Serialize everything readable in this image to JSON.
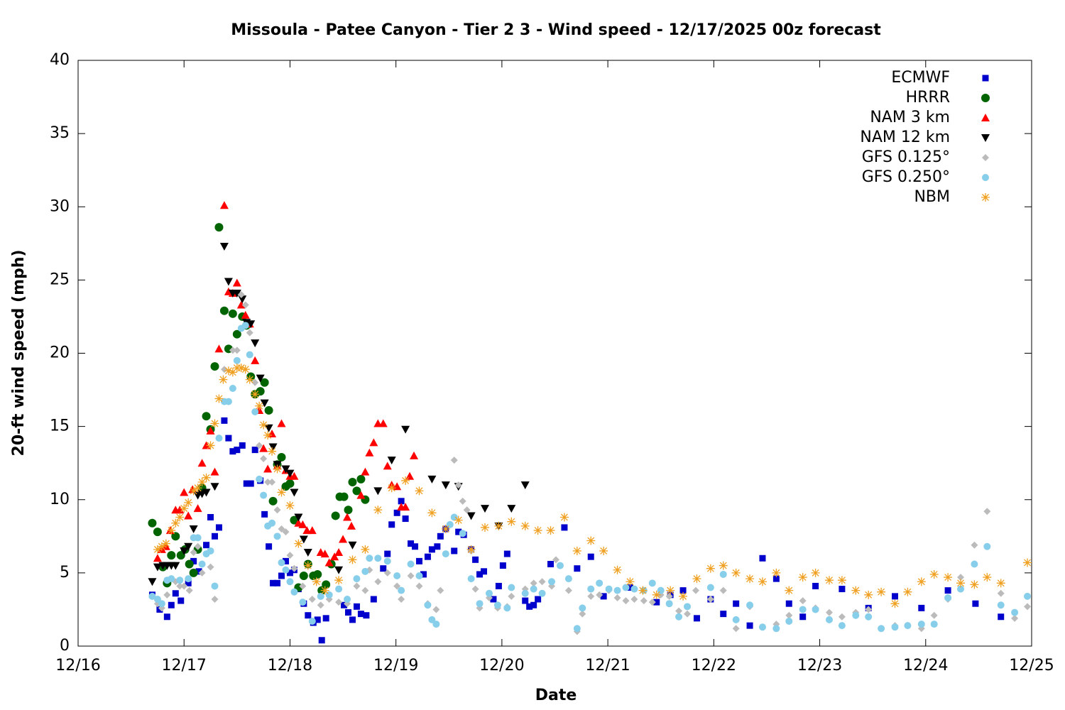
{
  "chart_data": {
    "type": "scatter",
    "title": "Missoula - Patee Canyon - Tier 2 3 - Wind speed - 12/17/2025 00z forecast",
    "x_label": "Date",
    "y_label": "20-ft wind speed (mph)",
    "xlim": [
      0,
      9
    ],
    "ylim": [
      0,
      40
    ],
    "xticks": [
      {
        "value": 0,
        "label": "12/16"
      },
      {
        "value": 1,
        "label": "12/17"
      },
      {
        "value": 2,
        "label": "12/18"
      },
      {
        "value": 3,
        "label": "12/19"
      },
      {
        "value": 4,
        "label": "12/20"
      },
      {
        "value": 5,
        "label": "12/21"
      },
      {
        "value": 6,
        "label": "12/22"
      },
      {
        "value": 7,
        "label": "12/23"
      },
      {
        "value": 8,
        "label": "12/24"
      },
      {
        "value": 9,
        "label": "12/25"
      }
    ],
    "yticks": [
      0,
      5,
      10,
      15,
      20,
      25,
      30,
      35,
      40
    ],
    "grid": false,
    "legend": "top-right",
    "series": [
      {
        "name": "ECMWF",
        "color": "#0000cc",
        "marker": "square",
        "x": [
          0.7,
          0.77,
          0.84,
          0.88,
          0.92,
          0.97,
          1.04,
          1.09,
          1.14,
          1.21,
          1.25,
          1.29,
          1.33,
          1.38,
          1.42,
          1.46,
          1.5,
          1.55,
          1.59,
          1.63,
          1.67,
          1.72,
          1.76,
          1.8,
          1.84,
          1.88,
          1.92,
          1.96,
          2.0,
          2.04,
          2.08,
          2.13,
          2.17,
          2.22,
          2.26,
          2.3,
          2.34,
          2.51,
          2.55,
          2.59,
          2.63,
          2.67,
          2.72,
          2.79,
          2.88,
          2.92,
          2.96,
          3.01,
          3.05,
          3.09,
          3.14,
          3.18,
          3.22,
          3.26,
          3.3,
          3.34,
          3.39,
          3.42,
          3.47,
          3.55,
          3.59,
          3.64,
          3.71,
          3.75,
          3.79,
          3.83,
          3.92,
          3.97,
          4.01,
          4.05,
          4.22,
          4.26,
          4.3,
          4.34,
          4.46,
          4.59,
          4.71,
          4.84,
          4.96,
          5.21,
          5.46,
          5.59,
          5.71,
          5.84,
          5.97,
          6.09,
          6.21,
          6.34,
          6.46,
          6.59,
          6.71,
          6.84,
          6.96,
          7.21,
          7.46,
          7.71,
          7.96,
          8.21,
          8.47,
          8.71
        ],
        "values": [
          3.5,
          2.5,
          2.0,
          2.8,
          3.6,
          3.1,
          4.3,
          5.8,
          5.1,
          6.9,
          8.8,
          7.5,
          8.1,
          15.4,
          14.2,
          13.3,
          13.4,
          13.7,
          11.1,
          11.1,
          13.4,
          11.3,
          9.0,
          6.8,
          4.3,
          4.3,
          4.8,
          5.8,
          5.0,
          5.2,
          3.9,
          2.9,
          2.1,
          1.6,
          1.8,
          0.4,
          1.9,
          2.8,
          2.3,
          1.8,
          2.7,
          2.2,
          2.1,
          3.2,
          5.3,
          6.3,
          8.3,
          9.1,
          9.9,
          8.7,
          7.0,
          6.8,
          5.8,
          4.9,
          6.1,
          6.6,
          6.8,
          7.5,
          8.0,
          6.5,
          7.8,
          7.6,
          6.6,
          5.9,
          4.9,
          5.1,
          3.2,
          4.1,
          5.5,
          6.3,
          3.1,
          2.7,
          2.8,
          3.2,
          5.6,
          8.1,
          5.3,
          6.1,
          3.4,
          4.0,
          3.0,
          3.5,
          3.8,
          1.9,
          3.2,
          2.2,
          2.9,
          1.4,
          6.0,
          4.6,
          2.9,
          2.0,
          4.1,
          3.9,
          2.6,
          3.4,
          2.6,
          3.8,
          2.9,
          2.0
        ]
      },
      {
        "name": "HRRR",
        "color": "#006400",
        "marker": "circle",
        "x": [
          0.7,
          0.75,
          0.8,
          0.84,
          0.88,
          0.92,
          0.97,
          1.01,
          1.05,
          1.09,
          1.13,
          1.17,
          1.21,
          1.25,
          1.29,
          1.33,
          1.38,
          1.42,
          1.46,
          1.5,
          1.55,
          1.59,
          1.63,
          1.67,
          1.72,
          1.76,
          1.8,
          1.84,
          1.88,
          1.92,
          1.96,
          2.0,
          2.04,
          2.08,
          2.13,
          2.17,
          2.22,
          2.26,
          2.3,
          2.34,
          2.39,
          2.43,
          2.47,
          2.51,
          2.55,
          2.59,
          2.63,
          2.67,
          2.71
        ],
        "values": [
          8.4,
          7.8,
          5.4,
          4.3,
          6.2,
          7.5,
          6.2,
          6.6,
          5.6,
          5.0,
          6.6,
          10.8,
          15.7,
          14.8,
          19.1,
          28.6,
          22.9,
          20.3,
          22.7,
          21.3,
          22.5,
          21.9,
          18.4,
          17.2,
          17.4,
          18.0,
          16.1,
          9.9,
          12.4,
          12.9,
          10.9,
          11.1,
          8.6,
          4.0,
          4.8,
          5.6,
          4.8,
          4.9,
          3.8,
          4.2,
          5.6,
          8.9,
          10.2,
          10.2,
          9.3,
          11.2,
          10.6,
          11.4,
          10.0
        ]
      },
      {
        "name": "NAM 3 km",
        "color": "#ff0000",
        "marker": "triangle-up",
        "x": [
          0.75,
          0.79,
          0.83,
          0.87,
          0.92,
          0.96,
          1.0,
          1.04,
          1.08,
          1.13,
          1.17,
          1.21,
          1.25,
          1.29,
          1.33,
          1.38,
          1.42,
          1.46,
          1.5,
          1.54,
          1.58,
          1.62,
          1.67,
          1.71,
          1.75,
          1.79,
          1.83,
          1.88,
          1.92,
          1.96,
          2.0,
          2.04,
          2.08,
          2.12,
          2.16,
          2.21,
          2.29,
          2.33,
          2.37,
          2.42,
          2.46,
          2.5,
          2.54,
          2.58,
          2.67,
          2.71,
          2.75,
          2.79,
          2.83,
          2.88,
          2.92,
          2.96,
          3.01,
          3.05,
          3.09,
          3.13,
          3.17
        ],
        "values": [
          6.0,
          6.6,
          6.8,
          7.9,
          9.3,
          9.3,
          10.5,
          8.9,
          10.7,
          9.4,
          12.5,
          13.7,
          14.7,
          11.9,
          20.3,
          30.1,
          24.2,
          24.1,
          24.8,
          23.3,
          22.6,
          22.0,
          19.5,
          16.1,
          13.5,
          12.1,
          14.5,
          12.3,
          15.2,
          12.0,
          11.6,
          11.6,
          8.4,
          8.3,
          7.9,
          7.9,
          6.4,
          6.3,
          5.7,
          6.1,
          6.4,
          7.3,
          8.8,
          8.2,
          10.3,
          11.9,
          13.2,
          13.9,
          15.2,
          15.2,
          12.3,
          11.0,
          10.9,
          9.5,
          9.5,
          11.6,
          13.0
        ]
      },
      {
        "name": "NAM 12 km",
        "color": "#000000",
        "marker": "triangle-down",
        "x": [
          0.7,
          0.75,
          0.8,
          0.84,
          0.88,
          0.92,
          1.0,
          1.04,
          1.09,
          1.13,
          1.17,
          1.21,
          1.29,
          1.38,
          1.42,
          1.46,
          1.5,
          1.55,
          1.59,
          1.63,
          1.67,
          1.72,
          1.76,
          1.8,
          1.84,
          1.88,
          1.96,
          2.0,
          2.04,
          2.08,
          2.13,
          2.17,
          2.46,
          2.59,
          2.83,
          2.96,
          3.09,
          3.34,
          3.47,
          3.59,
          3.71,
          3.84,
          3.97,
          4.09,
          4.22
        ],
        "values": [
          4.4,
          5.4,
          5.5,
          5.5,
          5.5,
          5.5,
          6.5,
          6.8,
          8.0,
          10.3,
          10.4,
          10.5,
          10.9,
          27.3,
          24.9,
          24.1,
          24.1,
          23.7,
          22.1,
          22.0,
          20.7,
          18.3,
          16.6,
          14.9,
          13.6,
          12.4,
          12.1,
          11.8,
          10.5,
          8.8,
          7.3,
          6.4,
          5.2,
          6.9,
          10.6,
          12.7,
          14.8,
          11.4,
          11.0,
          10.9,
          8.9,
          9.4,
          8.2,
          9.4,
          11.0
        ]
      },
      {
        "name": "GFS 0.125°",
        "color": "#bbbbbb",
        "marker": "diamond",
        "x": [
          0.7,
          0.75,
          0.79,
          0.84,
          0.92,
          0.96,
          1.0,
          1.05,
          1.09,
          1.13,
          1.17,
          1.25,
          1.29,
          1.38,
          1.46,
          1.5,
          1.54,
          1.58,
          1.62,
          1.67,
          1.71,
          1.75,
          1.79,
          1.83,
          1.88,
          1.92,
          1.96,
          2.0,
          2.04,
          2.12,
          2.21,
          2.29,
          2.37,
          2.46,
          2.54,
          2.63,
          2.71,
          2.75,
          2.83,
          2.92,
          3.01,
          3.05,
          3.14,
          3.22,
          3.3,
          3.38,
          3.42,
          3.55,
          3.59,
          3.63,
          3.67,
          3.71,
          3.75,
          3.79,
          3.88,
          3.96,
          4.05,
          4.09,
          4.22,
          4.3,
          4.38,
          4.47,
          4.51,
          4.63,
          4.71,
          4.76,
          4.84,
          4.92,
          5.01,
          5.09,
          5.17,
          5.25,
          5.34,
          5.42,
          5.5,
          5.58,
          5.67,
          5.75,
          5.83,
          5.97,
          6.09,
          6.21,
          6.34,
          6.46,
          6.59,
          6.71,
          6.84,
          6.96,
          7.09,
          7.21,
          7.34,
          7.46,
          7.58,
          7.71,
          7.83,
          7.96,
          8.08,
          8.21,
          8.33,
          8.46,
          8.58,
          8.71,
          8.84,
          8.96
        ],
        "values": [
          3.4,
          2.9,
          2.6,
          3.5,
          4.4,
          4.1,
          4.1,
          3.8,
          6.4,
          6.8,
          5.0,
          5.4,
          3.2,
          18.9,
          20.2,
          20.2,
          24.0,
          23.3,
          21.4,
          18.0,
          13.7,
          12.8,
          11.2,
          11.2,
          9.3,
          8.0,
          7.8,
          6.2,
          5.3,
          4.1,
          3.2,
          2.8,
          3.2,
          3.0,
          2.9,
          4.1,
          3.8,
          5.2,
          4.4,
          5.0,
          4.1,
          3.2,
          4.8,
          4.1,
          2.9,
          2.5,
          3.8,
          12.7,
          11.0,
          9.9,
          9.3,
          6.5,
          3.9,
          2.6,
          3.3,
          2.6,
          2.7,
          3.4,
          3.9,
          4.3,
          4.4,
          4.1,
          5.9,
          3.8,
          1.0,
          2.2,
          3.4,
          3.5,
          3.8,
          3.3,
          3.1,
          3.2,
          3.1,
          3.0,
          3.5,
          3.4,
          2.4,
          2.2,
          3.8,
          3.2,
          3.8,
          1.2,
          2.7,
          1.3,
          1.5,
          2.1,
          3.1,
          2.6,
          2.3,
          2.0,
          2.3,
          2.5,
          1.2,
          1.4,
          1.4,
          1.2,
          2.1,
          3.2,
          4.7,
          6.9,
          9.2,
          3.6,
          1.9,
          2.7
        ]
      },
      {
        "name": "GFS 0.250°",
        "color": "#87ceeb",
        "marker": "dot",
        "x": [
          0.7,
          0.75,
          0.79,
          0.84,
          0.88,
          0.96,
          1.04,
          1.09,
          1.13,
          1.17,
          1.21,
          1.25,
          1.29,
          1.33,
          1.38,
          1.42,
          1.46,
          1.5,
          1.54,
          1.58,
          1.62,
          1.67,
          1.71,
          1.75,
          1.79,
          1.83,
          1.88,
          1.92,
          1.96,
          2.0,
          2.04,
          2.12,
          2.21,
          2.29,
          2.37,
          2.46,
          2.54,
          2.63,
          2.71,
          2.75,
          2.83,
          2.92,
          3.01,
          3.05,
          3.14,
          3.22,
          3.3,
          3.34,
          3.38,
          3.47,
          3.51,
          3.55,
          3.63,
          3.71,
          3.79,
          3.88,
          3.96,
          4.05,
          4.09,
          4.22,
          4.3,
          4.38,
          4.47,
          4.55,
          4.63,
          4.71,
          4.76,
          4.84,
          4.92,
          5.01,
          5.09,
          5.17,
          5.25,
          5.34,
          5.42,
          5.5,
          5.58,
          5.67,
          5.75,
          5.97,
          6.09,
          6.21,
          6.34,
          6.46,
          6.59,
          6.71,
          6.84,
          6.96,
          7.09,
          7.21,
          7.34,
          7.46,
          7.58,
          7.71,
          7.83,
          7.96,
          8.08,
          8.21,
          8.33,
          8.46,
          8.58,
          8.71,
          8.84,
          8.96
        ],
        "values": [
          3.4,
          3.2,
          2.9,
          4.5,
          4.6,
          4.5,
          4.6,
          7.4,
          7.4,
          5.6,
          6.3,
          6.5,
          4.1,
          14.2,
          16.7,
          16.7,
          17.6,
          19.5,
          21.7,
          21.9,
          19.9,
          16.0,
          11.4,
          10.3,
          8.2,
          8.4,
          7.5,
          5.7,
          5.2,
          4.4,
          3.7,
          3.0,
          1.7,
          3.4,
          3.5,
          3.9,
          3.2,
          4.6,
          5.1,
          6.0,
          6.0,
          5.8,
          4.8,
          3.8,
          5.6,
          4.8,
          2.8,
          1.8,
          1.5,
          6.3,
          8.3,
          8.8,
          7.7,
          4.6,
          2.9,
          3.6,
          2.8,
          2.6,
          4.0,
          3.6,
          3.9,
          3.6,
          4.4,
          5.5,
          4.6,
          1.2,
          2.6,
          3.9,
          4.3,
          3.9,
          3.8,
          4.0,
          3.9,
          3.8,
          4.3,
          3.8,
          2.9,
          2.0,
          2.7,
          4.0,
          4.9,
          1.8,
          2.8,
          1.3,
          1.2,
          1.7,
          2.5,
          2.5,
          1.8,
          1.4,
          2.1,
          2.0,
          1.2,
          1.3,
          1.4,
          1.5,
          1.5,
          3.3,
          3.9,
          5.6,
          6.8,
          2.8,
          2.3,
          3.4
        ]
      },
      {
        "name": "NBM",
        "color": "#f0a020",
        "marker": "asterisk",
        "x": [
          0.75,
          0.79,
          0.83,
          0.88,
          0.92,
          0.96,
          1.0,
          1.04,
          1.09,
          1.13,
          1.17,
          1.21,
          1.25,
          1.29,
          1.33,
          1.37,
          1.42,
          1.46,
          1.5,
          1.54,
          1.58,
          1.62,
          1.67,
          1.71,
          1.75,
          1.79,
          1.83,
          1.88,
          1.92,
          2.0,
          2.08,
          2.17,
          2.25,
          2.33,
          2.46,
          2.59,
          2.71,
          2.83,
          2.96,
          3.09,
          3.22,
          3.34,
          3.47,
          3.59,
          3.71,
          3.84,
          3.97,
          4.09,
          4.22,
          4.34,
          4.46,
          4.59,
          4.71,
          4.84,
          4.96,
          5.09,
          5.21,
          5.33,
          5.46,
          5.59,
          5.71,
          5.84,
          5.97,
          6.09,
          6.21,
          6.34,
          6.46,
          6.59,
          6.71,
          6.84,
          6.96,
          7.09,
          7.21,
          7.34,
          7.46,
          7.58,
          7.71,
          7.83,
          7.96,
          8.08,
          8.21,
          8.33,
          8.46,
          8.58,
          8.71,
          8.96
        ],
        "values": [
          6.6,
          6.8,
          7.0,
          7.9,
          8.4,
          8.8,
          9.4,
          9.8,
          10.6,
          10.8,
          11.2,
          11.5,
          13.7,
          15.2,
          16.9,
          18.2,
          18.8,
          18.7,
          19.0,
          19.0,
          18.9,
          18.2,
          17.2,
          16.4,
          15.1,
          14.4,
          13.3,
          12.1,
          10.5,
          9.6,
          7.0,
          5.5,
          4.4,
          3.8,
          4.5,
          5.9,
          6.6,
          9.3,
          10.8,
          11.3,
          10.6,
          9.1,
          8.0,
          8.6,
          6.6,
          8.1,
          8.2,
          8.5,
          8.2,
          7.9,
          7.9,
          8.8,
          6.5,
          7.2,
          6.5,
          5.2,
          4.4,
          3.8,
          3.5,
          3.8,
          3.4,
          4.6,
          5.3,
          5.5,
          5.0,
          4.6,
          4.4,
          5.0,
          3.8,
          4.7,
          5.0,
          4.5,
          4.5,
          3.8,
          3.5,
          3.7,
          2.9,
          3.7,
          4.4,
          4.9,
          4.7,
          4.3,
          4.2,
          4.7,
          4.3,
          5.7
        ]
      }
    ]
  }
}
